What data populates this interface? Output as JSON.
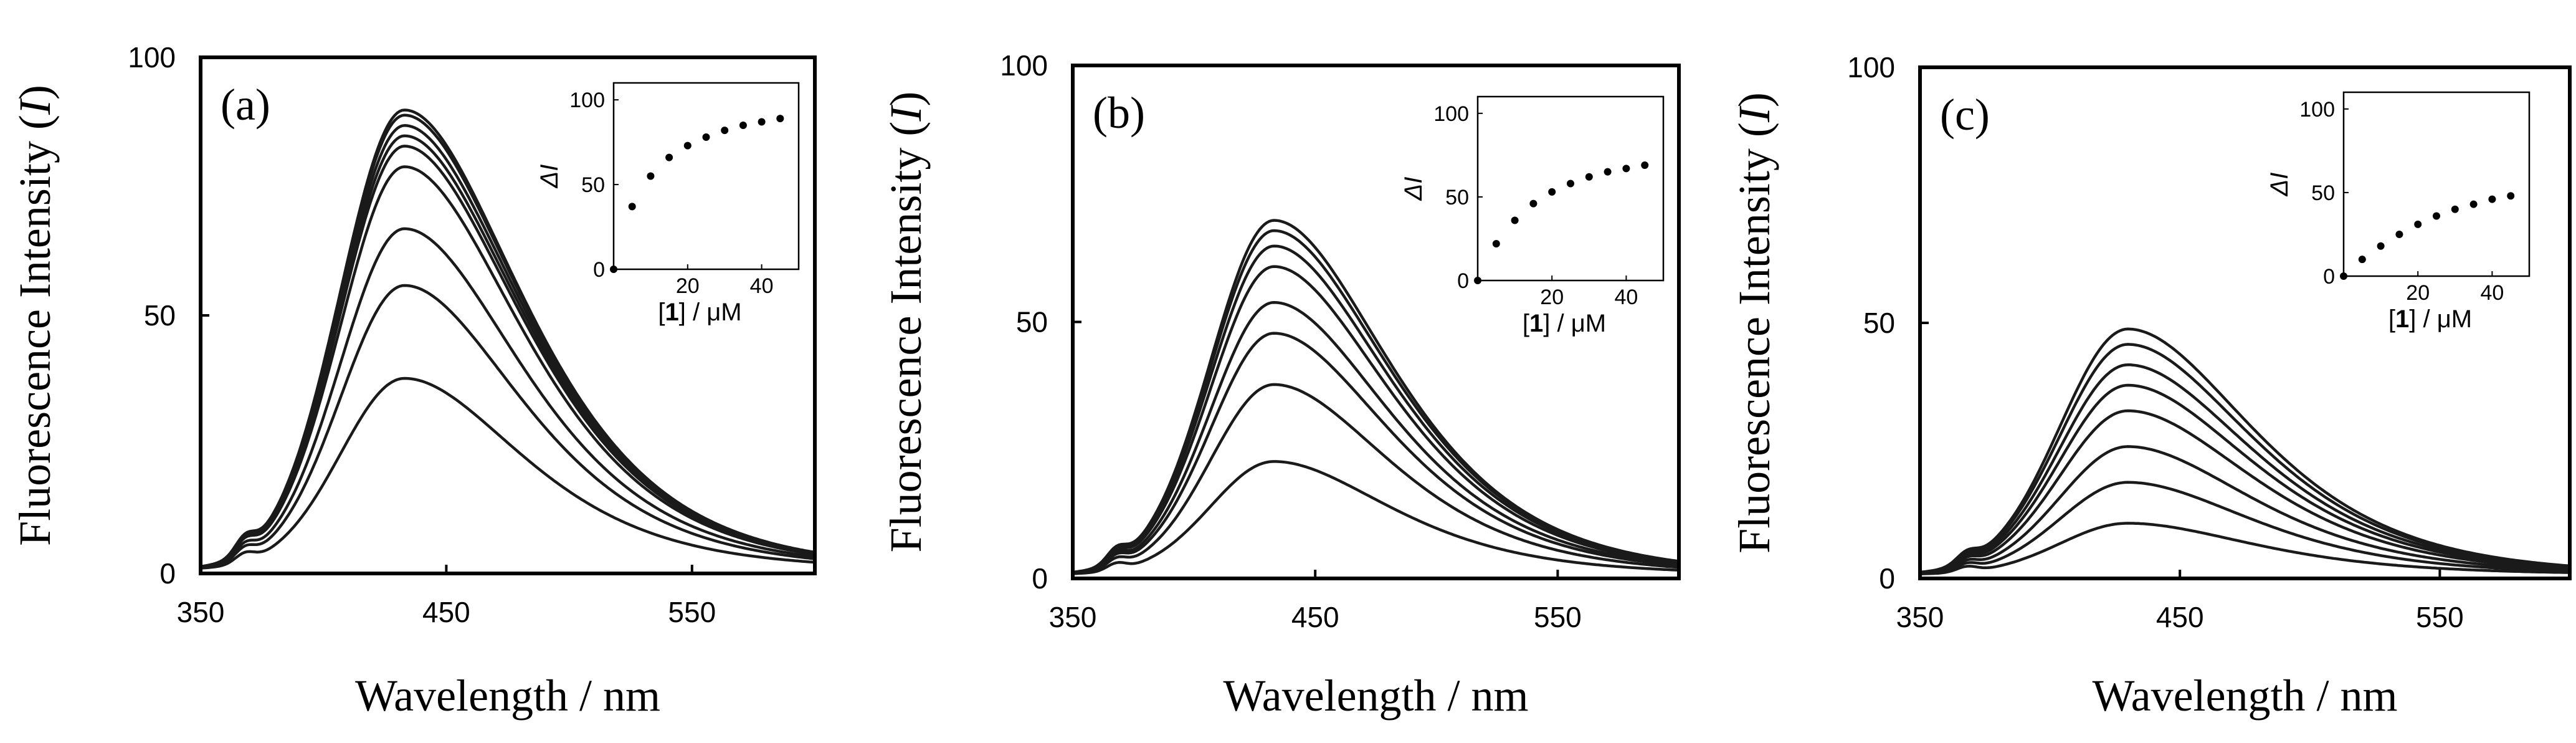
{
  "chart_data": [
    {
      "type": "line",
      "panel_label": "(a)",
      "xlabel": "Wavelength / nm",
      "ylabel_main": "Fluorescence Intensity (",
      "ylabel_symbol": "I",
      "ylabel_close": ")",
      "xlim": [
        350,
        600
      ],
      "ylim": [
        0,
        100
      ],
      "xticks": [
        "350",
        "450",
        "550"
      ],
      "yticks": [
        "0",
        "50",
        "100"
      ],
      "curve_peaks": [
        37,
        55,
        66,
        78,
        82,
        84,
        86,
        88,
        89
      ],
      "peak_wavelength": 433,
      "inset": {
        "type": "scatter",
        "ylabel": "ΔI",
        "xlabel_open": "[",
        "xlabel_bold": "1",
        "xlabel_rest": "] / μM",
        "xlim": [
          0,
          50
        ],
        "ylim": [
          0,
          110
        ],
        "xticks": [
          "20",
          "40"
        ],
        "yticks": [
          "0",
          "50",
          "100"
        ],
        "x": [
          0,
          5,
          10,
          15,
          20,
          25,
          30,
          35,
          40,
          45
        ],
        "y": [
          0,
          37,
          55,
          66,
          73,
          78,
          82,
          85,
          87,
          89
        ]
      }
    },
    {
      "type": "line",
      "panel_label": "(b)",
      "xlabel": "Wavelength / nm",
      "ylabel_main": "Fluorescence Intensity (",
      "ylabel_symbol": "I",
      "ylabel_close": ")",
      "xlim": [
        350,
        600
      ],
      "ylim": [
        0,
        100
      ],
      "xticks": [
        "350",
        "450",
        "550"
      ],
      "yticks": [
        "0",
        "50",
        "100"
      ],
      "curve_peaks": [
        22,
        37,
        47,
        53,
        60,
        64,
        67,
        69
      ],
      "peak_wavelength": 433,
      "inset": {
        "type": "scatter",
        "ylabel": "ΔI",
        "xlabel_open": "[",
        "xlabel_bold": "1",
        "xlabel_rest": "] / μM",
        "xlim": [
          0,
          50
        ],
        "ylim": [
          0,
          110
        ],
        "xticks": [
          "20",
          "40"
        ],
        "yticks": [
          "0",
          "50",
          "100"
        ],
        "x": [
          0,
          5,
          10,
          15,
          20,
          25,
          30,
          35,
          40,
          45
        ],
        "y": [
          0,
          22,
          36,
          46,
          53,
          58,
          62,
          65,
          67,
          69
        ]
      }
    },
    {
      "type": "line",
      "panel_label": "(c)",
      "xlabel": "Wavelength / nm",
      "ylabel_main": "Fluorescence Intensity (",
      "ylabel_symbol": "I",
      "ylabel_close": ")",
      "xlim": [
        350,
        600
      ],
      "ylim": [
        0,
        100
      ],
      "xticks": [
        "350",
        "450",
        "550"
      ],
      "yticks": [
        "0",
        "50",
        "100"
      ],
      "curve_peaks": [
        10,
        18,
        25,
        32,
        37,
        41,
        45,
        48
      ],
      "peak_wavelength": 430,
      "inset": {
        "type": "scatter",
        "ylabel": "ΔI",
        "xlabel_open": "[",
        "xlabel_bold": "1",
        "xlabel_rest": "] / μM",
        "xlim": [
          0,
          50
        ],
        "ylim": [
          0,
          110
        ],
        "xticks": [
          "20",
          "40"
        ],
        "yticks": [
          "0",
          "50",
          "100"
        ],
        "x": [
          0,
          5,
          10,
          15,
          20,
          25,
          30,
          35,
          40,
          45
        ],
        "y": [
          0,
          10,
          18,
          25,
          31,
          36,
          40,
          43,
          46,
          48
        ]
      }
    }
  ]
}
